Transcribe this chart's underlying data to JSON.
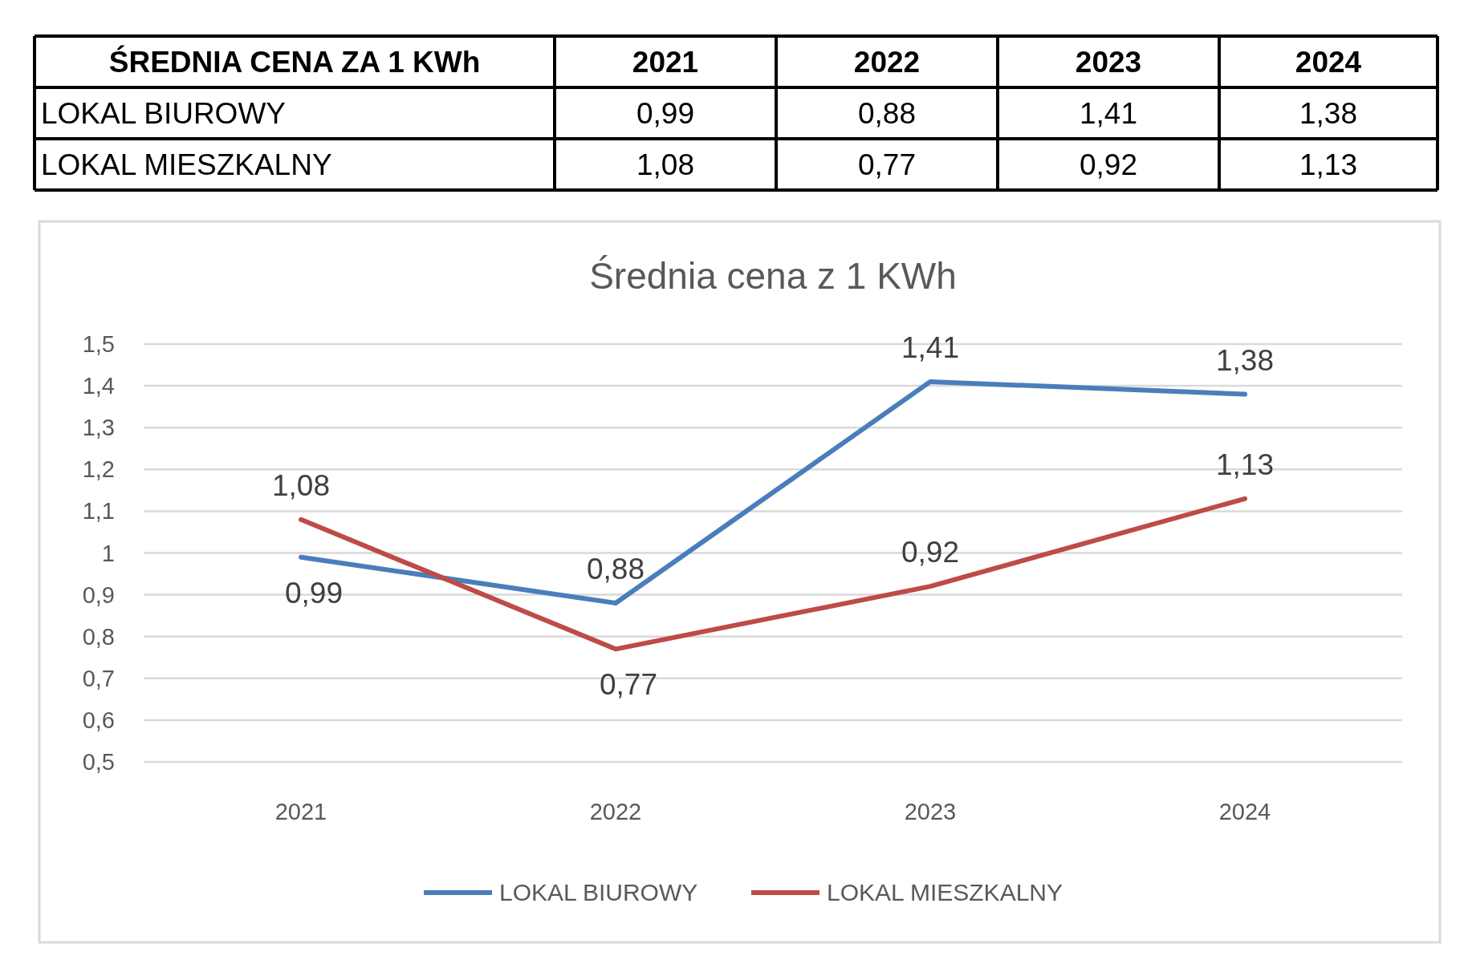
{
  "chart_data": {
    "type": "line",
    "title": "Średnia cena z 1 KWh",
    "annotations": [
      "ŚREDNIA CENA ZA 1 KWh"
    ],
    "categories": [
      "2021",
      "2022",
      "2023",
      "2024"
    ],
    "series": [
      {
        "name": "LOKAL BIUROWY",
        "color": "#4a7ebb",
        "values": [
          0.99,
          0.88,
          1.41,
          1.38
        ],
        "value_labels": [
          "0,99",
          "0,88",
          "1,41",
          "1,38"
        ]
      },
      {
        "name": "LOKAL MIESZKALNY",
        "color": "#be4b48",
        "values": [
          1.08,
          0.77,
          0.92,
          1.13
        ],
        "value_labels": [
          "1,08",
          "0,77",
          "0,92",
          "1,13"
        ]
      }
    ],
    "ylim": [
      0.5,
      1.5
    ],
    "yticks": [
      {
        "value": 0.5,
        "label": "0,5"
      },
      {
        "value": 0.6,
        "label": "0,6"
      },
      {
        "value": 0.7,
        "label": "0,7"
      },
      {
        "value": 0.8,
        "label": "0,8"
      },
      {
        "value": 0.9,
        "label": "0,9"
      },
      {
        "value": 1,
        "label": "1"
      },
      {
        "value": 1.1,
        "label": "1,1"
      },
      {
        "value": 1.2,
        "label": "1,2"
      },
      {
        "value": 1.3,
        "label": "1,3"
      },
      {
        "value": 1.4,
        "label": "1,4"
      },
      {
        "value": 1.5,
        "label": "1,5"
      }
    ],
    "grid": "y",
    "legend": "bottom",
    "marker": "none",
    "line_style": "solid"
  }
}
